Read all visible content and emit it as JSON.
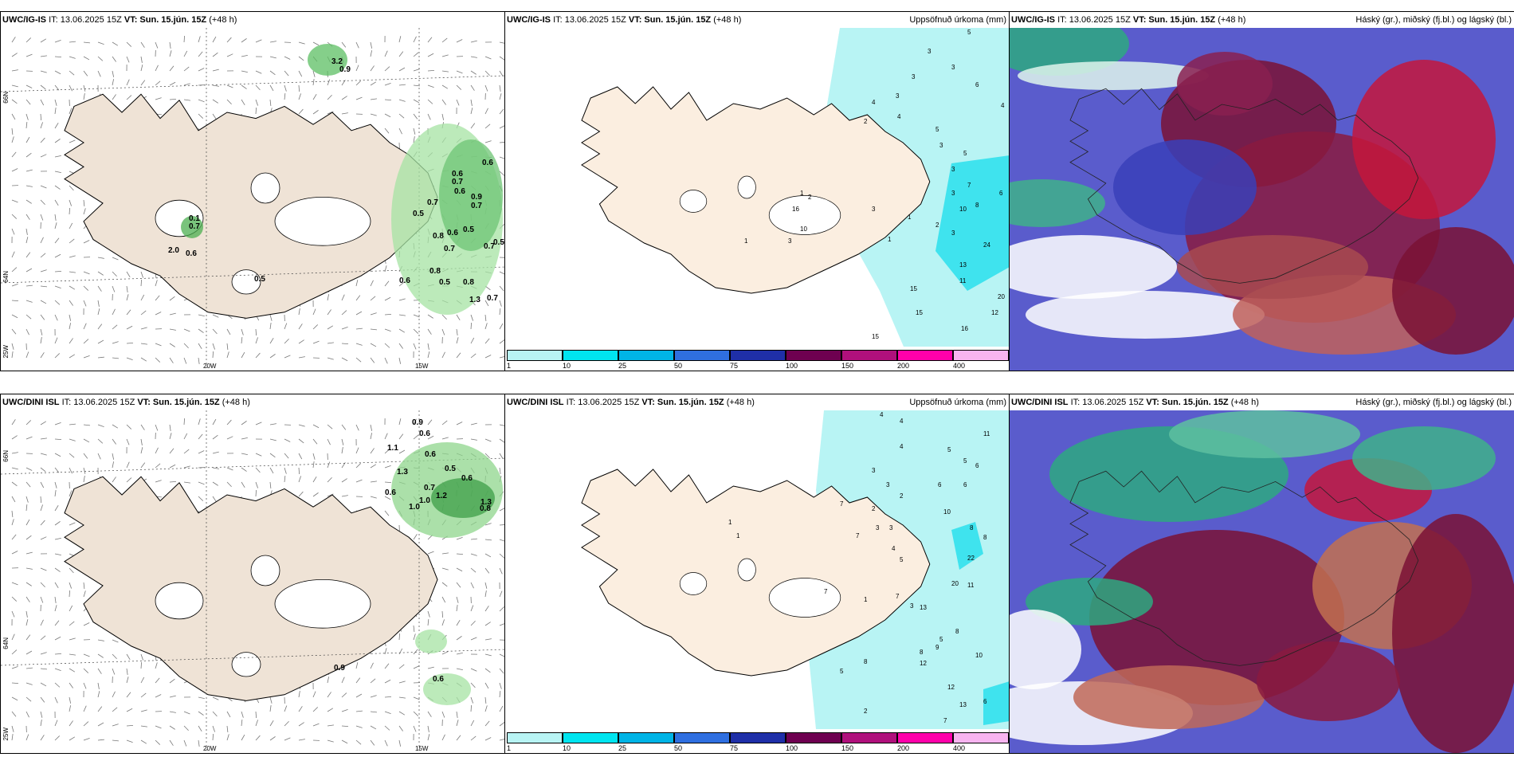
{
  "panels": [
    {
      "model": "UWC/IG-IS",
      "it": "IT: 13.06.2025 15Z",
      "vt_label": "VT: Sun. 15.jún. 15Z",
      "lead": "(+48 h)",
      "right": ""
    },
    {
      "model": "UWC/IG-IS",
      "it": "IT: 13.06.2025 15Z",
      "vt_label": "VT: Sun. 15.jún. 15Z",
      "lead": "(+48 h)",
      "right": "Uppsöfnuð úrkoma (mm)"
    },
    {
      "model": "UWC/IG-IS",
      "it": "IT: 13.06.2025 15Z",
      "vt_label": "VT: Sun. 15.jún. 15Z",
      "lead": "(+48 h)",
      "right": "Háský (gr.), miðský (fj.bl.) og lágský (bl.)"
    },
    {
      "model": "UWC/DINI ISL",
      "it": "IT: 13.06.2025 15Z",
      "vt_label": "VT: Sun. 15.jún. 15Z",
      "lead": "(+48 h)",
      "right": ""
    },
    {
      "model": "UWC/DINI ISL",
      "it": "IT: 13.06.2025 15Z",
      "vt_label": "VT: Sun. 15.jún. 15Z",
      "lead": "(+48 h)",
      "right": "Uppsöfnuð úrkoma (mm)"
    },
    {
      "model": "UWC/DINI ISL",
      "it": "IT: 13.06.2025 15Z",
      "vt_label": "VT: Sun. 15.jún. 15Z",
      "lead": "(+48 h)",
      "right": "Háský (gr.), miðský (fj.bl.) og lágský (bl.)"
    }
  ],
  "axes": {
    "lon": [
      "20W",
      "15W"
    ],
    "lat": [
      "66N",
      "64N"
    ],
    "lon_left": "25W"
  },
  "colorbar": {
    "ticks": [
      "1",
      "10",
      "25",
      "50",
      "75",
      "100",
      "150",
      "200",
      "400"
    ],
    "colors": [
      "#b8f4f4",
      "#00e5f0",
      "#00b4e6",
      "#2f6fe0",
      "#1f2fa8",
      "#6e0050",
      "#b0107c",
      "#ff00aa",
      "#f8b4f0"
    ]
  },
  "wind_labels_top": [
    "0.9",
    "3.2",
    "0.1",
    "0.7",
    "2.0",
    "0.6",
    "0.5",
    "0.6",
    "0.6",
    "0.7",
    "0.6",
    "0.7",
    "0.9",
    "0.7",
    "0.5",
    "0.6",
    "0.5",
    "0.8",
    "0.7",
    "0.5",
    "0.7",
    "0.8",
    "0.5",
    "0.8",
    "0.7",
    "1.3",
    "0.6"
  ],
  "wind_labels_bottom": [
    "0.9",
    "0.6",
    "1.1",
    "0.6",
    "0.5",
    "0.6",
    "1.3",
    "0.6",
    "0.7",
    "1.0",
    "1.2",
    "1.0",
    "1.3",
    "0.8",
    "0.9",
    "0.6"
  ],
  "precip_labels_top": [
    "5",
    "3",
    "3",
    "6",
    "3",
    "4",
    "1",
    "4",
    "3",
    "5",
    "4",
    "3",
    "5",
    "3",
    "2",
    "7",
    "10",
    "3",
    "6",
    "8",
    "3",
    "24",
    "13",
    "11",
    "20",
    "12",
    "16",
    "15",
    "15",
    "15",
    "16",
    "10",
    "3",
    "3",
    "1",
    "2",
    "1",
    "2",
    "1"
  ],
  "precip_labels_bottom": [
    "4",
    "4",
    "11",
    "4",
    "5",
    "5",
    "6",
    "3",
    "7",
    "6",
    "6",
    "2",
    "3",
    "2",
    "8",
    "3",
    "3",
    "7",
    "10",
    "4",
    "5",
    "8",
    "1",
    "1",
    "7",
    "22",
    "20",
    "11",
    "13",
    "3",
    "8",
    "5",
    "1",
    "7",
    "8",
    "10",
    "9",
    "12",
    "12",
    "13",
    "6",
    "5",
    "8",
    "7",
    "2"
  ]
}
